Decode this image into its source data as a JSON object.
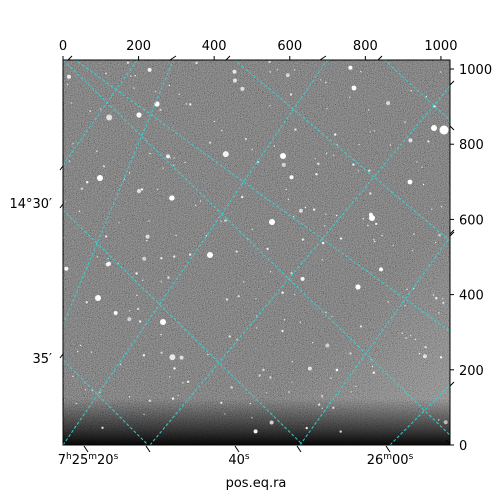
{
  "figure": {
    "background": "#ffffff",
    "image_style": "grayscale astronomical CCD image with stars and a dark bottom edge",
    "grid_color": "#35d4d4"
  },
  "pixel_axes": {
    "x_range": [
      0,
      1024
    ],
    "y_range": [
      0,
      1024
    ],
    "top_ticks": [
      "0",
      "200",
      "400",
      "600",
      "800",
      "1000"
    ],
    "right_ticks": [
      "0",
      "200",
      "400",
      "600",
      "800",
      "1000"
    ]
  },
  "world_axes": {
    "xlabel": "pos.eq.ra",
    "ra_ticks": [
      {
        "h": "7",
        "m": "25",
        "s": "20",
        "kind": "full"
      },
      {
        "s": "40",
        "kind": "sec"
      },
      {
        "m": "26",
        "s": "00",
        "kind": "min"
      }
    ],
    "dec_ticks": [
      {
        "text": "14°30′",
        "kind": "deg"
      },
      {
        "text": "35′",
        "kind": "min"
      }
    ]
  }
}
